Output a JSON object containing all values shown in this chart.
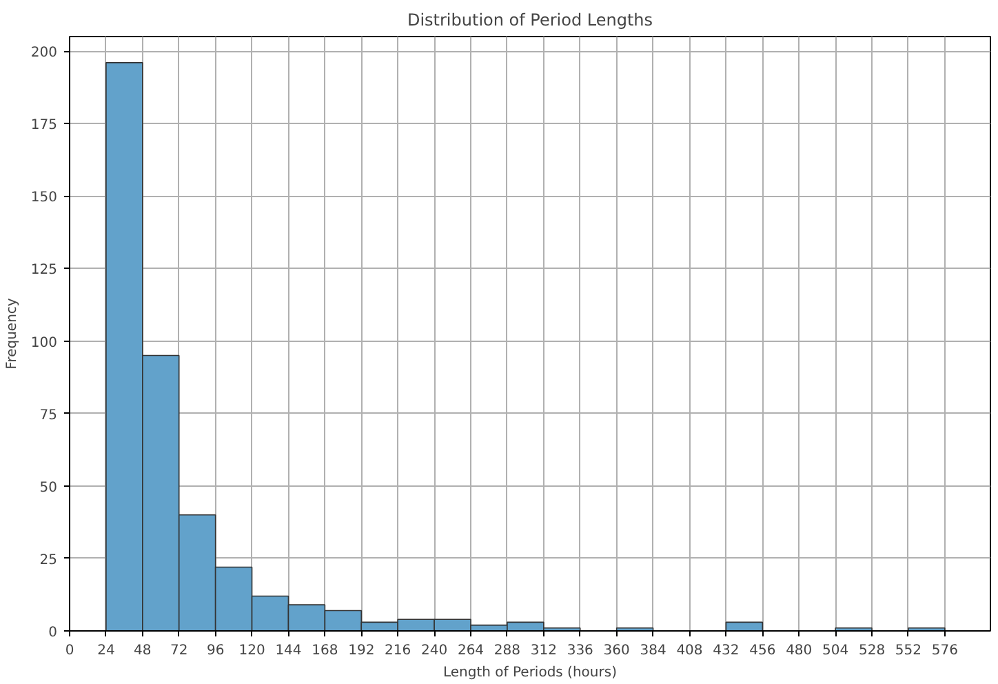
{
  "chart_data": {
    "type": "histogram",
    "title": "Distribution of Period Lengths",
    "xlabel": "Length of Periods (hours)",
    "ylabel": "Frequency",
    "bins": [
      24,
      48,
      72,
      96,
      120,
      144,
      168,
      192,
      216,
      240,
      264,
      288,
      312,
      336,
      360,
      384,
      408,
      432,
      456,
      480,
      504,
      528,
      552,
      576
    ],
    "values": [
      196,
      95,
      40,
      22,
      12,
      9,
      7,
      3,
      4,
      4,
      2,
      3,
      1,
      0,
      1,
      0,
      0,
      3,
      0,
      0,
      1,
      0,
      1
    ],
    "color": "#62a2cb",
    "xlim": [
      0,
      606
    ],
    "xticks": [
      0,
      24,
      48,
      72,
      96,
      120,
      144,
      168,
      192,
      216,
      240,
      264,
      288,
      312,
      336,
      360,
      384,
      408,
      432,
      456,
      480,
      504,
      528,
      552,
      576
    ],
    "ylim": [
      0,
      205
    ],
    "yticks": [
      0,
      25,
      50,
      75,
      100,
      125,
      150,
      175,
      200
    ],
    "grid": true
  }
}
